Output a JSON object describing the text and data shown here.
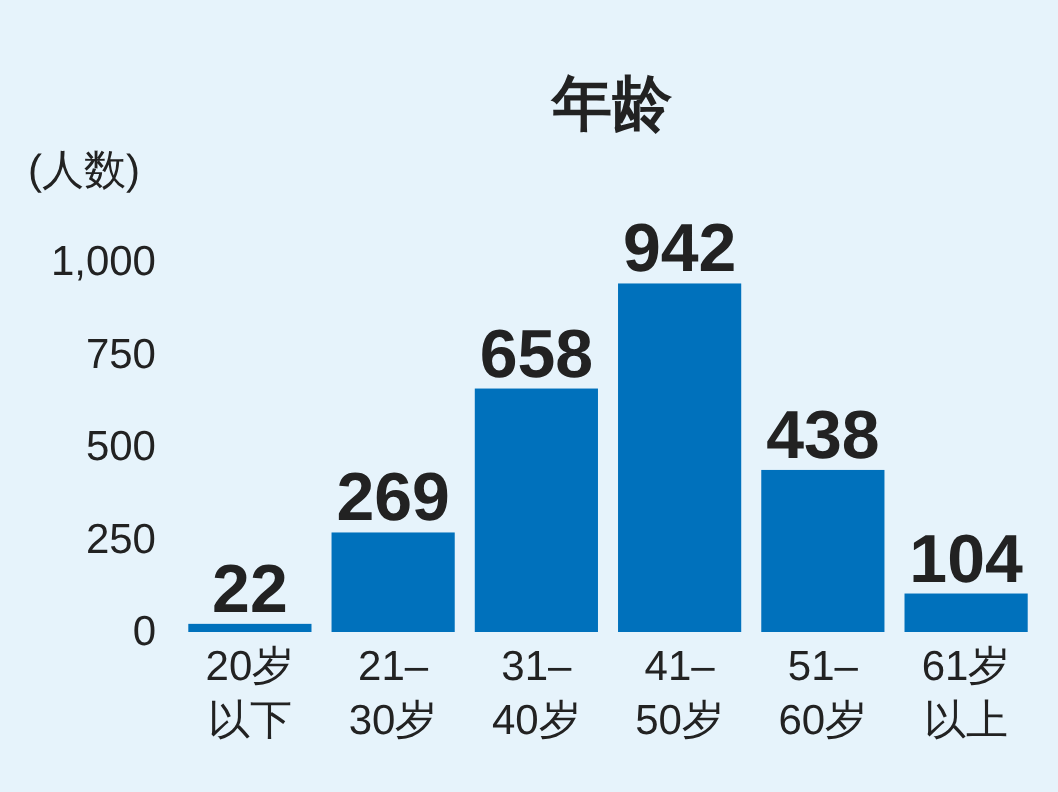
{
  "chart_data": {
    "type": "bar",
    "title": "年龄",
    "ylabel": "(人数)",
    "categories": [
      "20岁以下",
      "21–30岁",
      "31–40岁",
      "41–50岁",
      "51–60岁",
      "61岁以上"
    ],
    "values": [
      22,
      269,
      658,
      942,
      438,
      104
    ],
    "color": "#0071bc",
    "ylim": [
      0,
      1000
    ],
    "yticks": [
      0,
      250,
      500,
      750,
      {
        "value": 1000,
        "label": "1,000"
      }
    ],
    "data_labels": true,
    "grid": false
  }
}
